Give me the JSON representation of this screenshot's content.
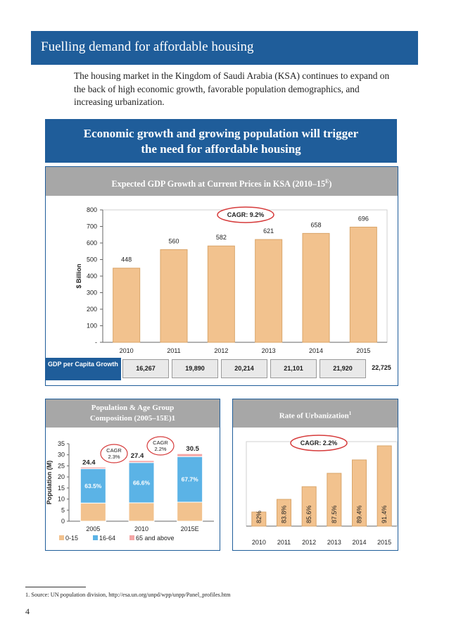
{
  "banner": {
    "title": "Fuelling demand for affordable housing"
  },
  "intro": {
    "text": "The housing market in the Kingdom of Saudi Arabia (KSA) continues to expand on the back of high economic growth, favorable population demographics, and increasing urbanization."
  },
  "heading": {
    "line1": "Economic growth and growing population will trigger",
    "line2": "the need for affordable housing"
  },
  "gdp_panel": {
    "title": "Expected GDP Growth at Current Prices in KSA (2010–15",
    "title_sup": "E",
    "title_close": ")",
    "cagr_label": "CAGR: 9.2%",
    "row_label": "GDP per Capita Growth",
    "row_values": [
      "16,267",
      "19,890",
      "20,214",
      "21,101",
      "21,920",
      "22,725"
    ]
  },
  "pop_panel": {
    "title_line1": "Population & Age Group",
    "title_line2": "Composition (2005–15E)1",
    "cagr_1_line1": "CAGR",
    "cagr_1_line2": "2.3%",
    "cagr_2_line1": "CAGR",
    "cagr_2_line2": "2.2%"
  },
  "urb_panel": {
    "title": "Rate of Urbanization",
    "title_sup": "1",
    "cagr_label": "CAGR: 2.2%"
  },
  "chart_data": [
    {
      "type": "bar",
      "title": "Expected GDP Growth at Current Prices in KSA (2010–15E)",
      "categories": [
        "2010",
        "2011",
        "2012",
        "2013",
        "2014",
        "2015"
      ],
      "values": [
        448,
        560,
        582,
        621,
        658,
        696
      ],
      "value_labels": [
        "448",
        "560",
        "582",
        "621",
        "658",
        "696"
      ],
      "ylabel": "$ Billion",
      "ylim": [
        0,
        800
      ],
      "yticks": [
        "-",
        "100",
        "200",
        "300",
        "400",
        "500",
        "600",
        "700",
        "800"
      ],
      "color": "#f2c28e"
    },
    {
      "type": "bar",
      "title": "Population & Age Group Composition (2005–15E)",
      "categories": [
        "2005",
        "2010",
        "2015E"
      ],
      "series": [
        {
          "name": "0-15",
          "values": [
            8.2,
            8.3,
            8.6
          ]
        },
        {
          "name": "16-64",
          "values": [
            15.5,
            18.2,
            20.6
          ]
        },
        {
          "name": "65 and above",
          "values": [
            0.7,
            0.9,
            1.3
          ]
        }
      ],
      "totals": [
        "24.4",
        "27.4",
        "30.5"
      ],
      "share_labels": [
        "63.5%",
        "66.6%",
        "67.7%"
      ],
      "ylabel": "Population (M)",
      "ylim": [
        0,
        35
      ],
      "yticks": [
        "0",
        "5",
        "10",
        "15",
        "20",
        "25",
        "30",
        "35"
      ],
      "legend": [
        "0-15",
        "16-64",
        "65 and above"
      ],
      "colors": [
        "#f2c28e",
        "#5bb3e6",
        "#f4a6a6"
      ]
    },
    {
      "type": "bar",
      "title": "Rate of Urbanization",
      "categories": [
        "2010",
        "2011",
        "2012",
        "2013",
        "2014",
        "2015"
      ],
      "values": [
        82,
        83.8,
        85.6,
        87.5,
        89.4,
        91.4
      ],
      "value_labels": [
        "82%",
        "83.8%",
        "85.6%",
        "87.5%",
        "89.4%",
        "91.4%"
      ],
      "ylim": [
        80,
        92
      ],
      "color": "#f2c28e"
    }
  ],
  "footnote": {
    "text": "1.  Source: UN population division, http://esa.un.org/unpd/wpp/unpp/Panel_profiles.htm"
  },
  "page": {
    "number": "4"
  }
}
